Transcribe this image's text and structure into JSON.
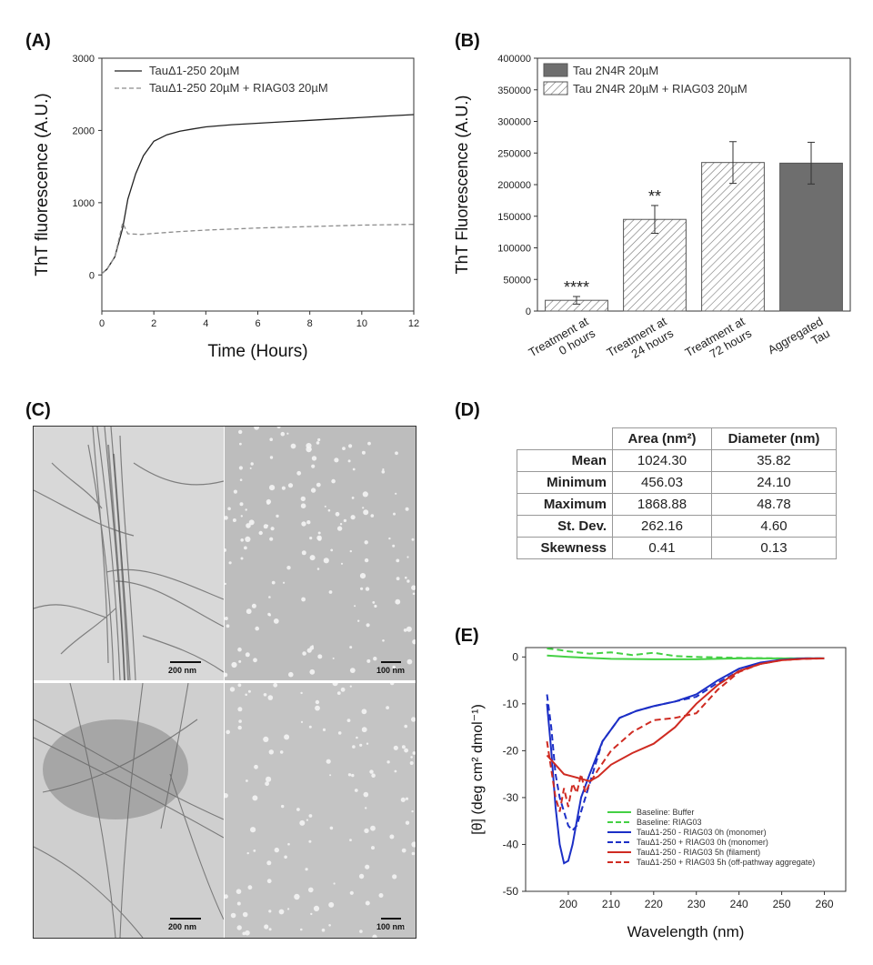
{
  "panels": {
    "a": "(A)",
    "b": "(B)",
    "c": "(C)",
    "d": "(D)",
    "e": "(E)"
  },
  "colors": {
    "panel_b_bar": "#6e6e6e",
    "green": "#44d044",
    "blue": "#1c2fc6",
    "red": "#cf2b22"
  },
  "chart_data": [
    {
      "id": "A",
      "type": "line",
      "xlabel": "Time (Hours)",
      "ylabel": "ThT fluorescence (A.U.)",
      "xlim": [
        0,
        12
      ],
      "ylim": [
        -500,
        3000
      ],
      "xticks": [
        0,
        2,
        4,
        6,
        8,
        10,
        12
      ],
      "yticks": [
        0,
        1000,
        2000,
        3000
      ],
      "legend_position": "top-left",
      "series": [
        {
          "name": "TauΔ1-250 20µM",
          "style": "solid",
          "color": "#222222",
          "x": [
            0,
            0.2,
            0.5,
            0.8,
            1.0,
            1.3,
            1.6,
            2.0,
            2.5,
            3.0,
            3.5,
            4.0,
            5.0,
            6.0,
            7.0,
            8.0,
            9.0,
            10.0,
            11.0,
            12.0
          ],
          "y": [
            20,
            80,
            250,
            650,
            1050,
            1400,
            1650,
            1850,
            1940,
            1990,
            2020,
            2050,
            2080,
            2100,
            2120,
            2140,
            2160,
            2180,
            2200,
            2220
          ]
        },
        {
          "name": "TauΔ1-250 20µM + RIAG03 20µM",
          "style": "dashed",
          "color": "#8c8c8c",
          "x": [
            0,
            0.2,
            0.5,
            0.8,
            1.0,
            1.5,
            2.0,
            3.0,
            4.0,
            6.0,
            8.0,
            10.0,
            12.0
          ],
          "y": [
            20,
            80,
            250,
            720,
            570,
            560,
            575,
            600,
            620,
            650,
            670,
            690,
            700
          ]
        }
      ]
    },
    {
      "id": "B",
      "type": "bar",
      "ylabel": "ThT Fluorescence (A.U.)",
      "ylim": [
        0,
        400000
      ],
      "yticks": [
        0,
        50000,
        100000,
        150000,
        200000,
        250000,
        300000,
        350000,
        400000
      ],
      "legend_position": "top-left",
      "legend": [
        "Tau 2N4R 20µM",
        "Tau 2N4R 20µM + RIAG03 20µM"
      ],
      "categories": [
        [
          "Treatment at",
          "0 hours"
        ],
        [
          "Treatment at",
          "24 hours"
        ],
        [
          "Treatment at",
          "72 hours"
        ],
        [
          "Aggregated",
          "Tau"
        ]
      ],
      "values": [
        17000,
        145000,
        235000,
        234000
      ],
      "errors": [
        6000,
        22000,
        33000,
        33000
      ],
      "hatched": [
        true,
        true,
        true,
        false
      ],
      "annotations": [
        "****",
        "**",
        "",
        ""
      ]
    },
    {
      "id": "E",
      "type": "line",
      "xlabel": "Wavelength (nm)",
      "ylabel": "[θ] (deg cm² dmol⁻¹)",
      "xlim": [
        190,
        265
      ],
      "ylim": [
        -50,
        2
      ],
      "xticks": [
        200,
        210,
        220,
        230,
        240,
        250,
        260
      ],
      "yticks": [
        0,
        -10,
        -20,
        -30,
        -40,
        -50
      ],
      "legend_position": "bottom-right",
      "series": [
        {
          "name": "Baseline: Buffer",
          "color": "#44d044",
          "style": "solid",
          "x": [
            195,
            200,
            210,
            220,
            230,
            240,
            250,
            260
          ],
          "y": [
            0.3,
            0,
            -0.4,
            -0.5,
            -0.5,
            -0.3,
            -0.3,
            -0.3
          ]
        },
        {
          "name": "Baseline: RIAG03",
          "color": "#44d044",
          "style": "dashed",
          "x": [
            195,
            198,
            200,
            205,
            210,
            215,
            220,
            225,
            230,
            240,
            250,
            260
          ],
          "y": [
            1.8,
            1.5,
            1.2,
            0.7,
            1.0,
            0.4,
            0.9,
            0.2,
            0,
            -0.2,
            -0.3,
            -0.3
          ]
        },
        {
          "name": "TauΔ1-250 - RIAG03 0h (monomer)",
          "color": "#1c2fc6",
          "style": "solid",
          "x": [
            195,
            196,
            197,
            198,
            199,
            200,
            201,
            202,
            203,
            205,
            208,
            212,
            216,
            220,
            225,
            230,
            235,
            240,
            245,
            250,
            255,
            260
          ],
          "y": [
            -10,
            -20,
            -32,
            -40,
            -44,
            -43.5,
            -40,
            -35,
            -30,
            -25,
            -18,
            -13,
            -11.5,
            -10.5,
            -9.5,
            -8,
            -5,
            -2.5,
            -1.2,
            -0.6,
            -0.3,
            -0.3
          ]
        },
        {
          "name": "TauΔ1-250 + RIAG03 0h (monomer)",
          "color": "#1c2fc6",
          "style": "dashed",
          "x": [
            195,
            196,
            197,
            198,
            199,
            200,
            201,
            202,
            203,
            205,
            208,
            212,
            216,
            220,
            225,
            230,
            235,
            240,
            245,
            250,
            255,
            260
          ],
          "y": [
            -8,
            -15,
            -25,
            -30,
            -33,
            -36,
            -37,
            -36,
            -33,
            -27,
            -18,
            -13,
            -11.5,
            -10.5,
            -9.5,
            -8.5,
            -5.5,
            -3,
            -1.3,
            -0.6,
            -0.3,
            -0.3
          ]
        },
        {
          "name": "TauΔ1-250 - RIAG03 5h (filament)",
          "color": "#cf2b22",
          "style": "solid",
          "x": [
            195,
            197,
            199,
            201,
            203,
            205,
            207,
            210,
            215,
            220,
            225,
            230,
            235,
            240,
            245,
            250,
            255,
            260
          ],
          "y": [
            -21,
            -23,
            -25,
            -25.5,
            -26,
            -26.5,
            -25.5,
            -23,
            -20.5,
            -18.5,
            -15,
            -10,
            -6,
            -3,
            -1.5,
            -0.7,
            -0.4,
            -0.3
          ]
        },
        {
          "name": "TauΔ1-250 + RIAG03 5h (off-pathway aggregate)",
          "color": "#cf2b22",
          "style": "dashed",
          "x": [
            195,
            197,
            198,
            199,
            200,
            201,
            202,
            203,
            204,
            205,
            207,
            210,
            215,
            220,
            225,
            230,
            235,
            240,
            245,
            250,
            255,
            260
          ],
          "y": [
            -18,
            -30,
            -33,
            -28,
            -32,
            -27,
            -29,
            -25,
            -29,
            -27,
            -24,
            -20,
            -16,
            -13.5,
            -13,
            -12,
            -7,
            -3.2,
            -1.5,
            -0.7,
            -0.4,
            -0.3
          ]
        }
      ]
    }
  ],
  "tem": {
    "scale_bars": [
      "200 nm",
      "100 nm",
      "200 nm",
      "100 nm"
    ]
  },
  "table_d": {
    "headers": [
      "Area (nm²)",
      "Diameter (nm)"
    ],
    "rows": [
      {
        "label": "Mean",
        "area": "1024.30",
        "diameter": "35.82"
      },
      {
        "label": "Minimum",
        "area": "456.03",
        "diameter": "24.10"
      },
      {
        "label": "Maximum",
        "area": "1868.88",
        "diameter": "48.78"
      },
      {
        "label": "St. Dev.",
        "area": "262.16",
        "diameter": "4.60"
      },
      {
        "label": "Skewness",
        "area": "0.41",
        "diameter": "0.13"
      }
    ]
  }
}
